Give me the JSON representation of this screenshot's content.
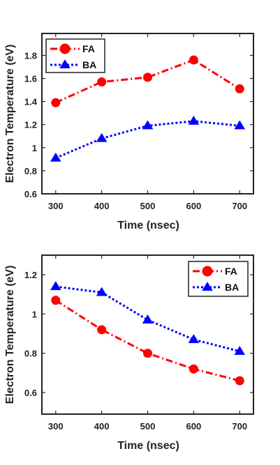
{
  "chart_data": [
    {
      "type": "line",
      "xlabel": "Time (nsec)",
      "ylabel": "Electron Temperature (eV)",
      "x": [
        300,
        400,
        500,
        600,
        700
      ],
      "xticks": [
        "300",
        "400",
        "500",
        "600",
        "700"
      ],
      "xlim": [
        270,
        730
      ],
      "ylim": [
        0.6,
        1.99
      ],
      "yticks": [
        "0.6",
        "0.8",
        "1",
        "1.2",
        "1.4",
        "1.6",
        "1.8"
      ],
      "grid": false,
      "legend": "top-left",
      "series": [
        {
          "name": "FA",
          "values": [
            1.39,
            1.57,
            1.61,
            1.76,
            1.51
          ],
          "color": "#ff0000",
          "dash": "dash-dot",
          "marker": "circle"
        },
        {
          "name": "BA",
          "values": [
            0.91,
            1.08,
            1.19,
            1.23,
            1.19
          ],
          "color": "#0000ff",
          "dash": "dotted",
          "marker": "triangle"
        }
      ]
    },
    {
      "type": "line",
      "xlabel": "Time (nsec)",
      "ylabel": "Electron Temperature (eV)",
      "x": [
        300,
        400,
        500,
        600,
        700
      ],
      "xticks": [
        "300",
        "400",
        "500",
        "600",
        "700"
      ],
      "xlim": [
        270,
        730
      ],
      "ylim": [
        0.49,
        1.3
      ],
      "yticks": [
        "0.6",
        "0.8",
        "1",
        "1.2"
      ],
      "grid": false,
      "legend": "top-right",
      "series": [
        {
          "name": "FA",
          "values": [
            1.07,
            0.92,
            0.8,
            0.72,
            0.66
          ],
          "color": "#ff0000",
          "dash": "dash-dot",
          "marker": "circle"
        },
        {
          "name": "BA",
          "values": [
            1.14,
            1.11,
            0.97,
            0.87,
            0.81
          ],
          "color": "#0000ff",
          "dash": "dotted",
          "marker": "triangle"
        }
      ]
    }
  ]
}
